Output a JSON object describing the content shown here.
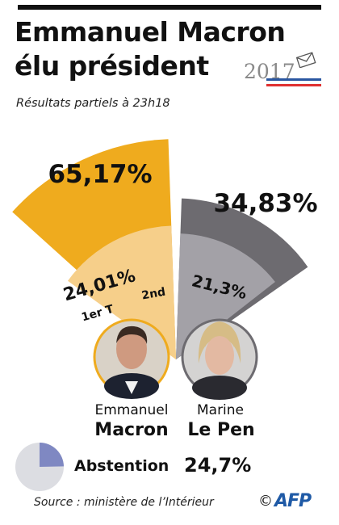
{
  "header": {
    "title_line1": "Emmanuel Macron",
    "title_line2": "élu président",
    "year": "2017",
    "subtitle": "Résultats partiels à 23h18"
  },
  "colors": {
    "macron_second_round": "#efab1e",
    "macron_first_round": "#f6cf8a",
    "lepen_second_round": "#6d6b70",
    "lepen_first_round": "#a3a1a7",
    "abstention": "#7f88c2",
    "abstention_rest": "#dcdde2"
  },
  "chart_data": {
    "type": "polar-bar",
    "title": "Emmanuel Macron élu président",
    "subtitle": "Résultats partiels à 23h18",
    "categories": [
      "Emmanuel Macron",
      "Marine Le Pen"
    ],
    "series": [
      {
        "name": "1er T",
        "values": [
          24.01,
          21.3
        ],
        "labels": [
          "24,01%",
          "21,3%"
        ]
      },
      {
        "name": "2nd",
        "values": [
          65.17,
          34.83
        ],
        "labels": [
          "65,17%",
          "34,83%"
        ]
      }
    ],
    "annotations": {
      "first_round": "1er T",
      "second_round": "2nd"
    },
    "abstention": {
      "label": "Abstention",
      "value": 24.7,
      "display": "24,7%"
    }
  },
  "candidates": [
    {
      "first": "Emmanuel",
      "last": "Macron"
    },
    {
      "first": "Marine",
      "last": "Le Pen"
    }
  ],
  "footer": {
    "source": "Source : ministère de l’Intérieur",
    "copyright": "©",
    "agency": "AFP"
  }
}
